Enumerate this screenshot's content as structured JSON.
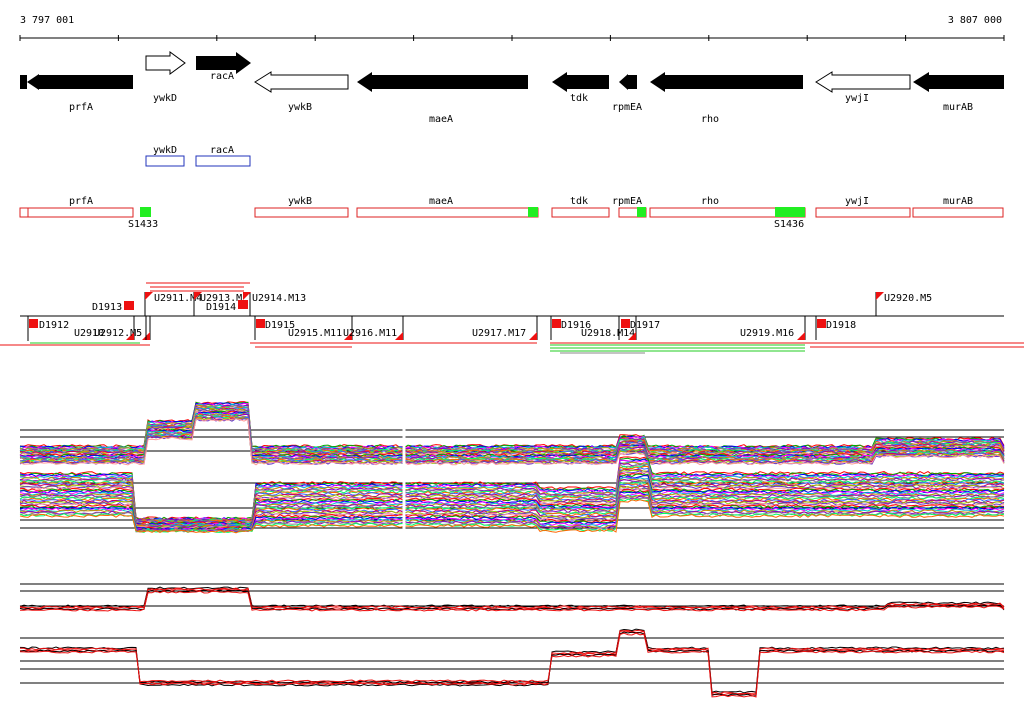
{
  "ruler": {
    "start_label": "3 797 001",
    "end_label": "3 807 000"
  },
  "colors": {
    "gene_fill": "#000000",
    "gene_outline": "#000000",
    "orf_box": "#2233bb",
    "segment_box": "#dd2222",
    "promoter": "#22ee22",
    "marker": "#ee1111",
    "line_red": "#ee1111",
    "line_black": "#000000",
    "line_green": "#22cc22"
  },
  "genes": [
    {
      "name": "prfA",
      "strand": "-",
      "filled": true
    },
    {
      "name": "ywkD",
      "strand": "+",
      "filled": false
    },
    {
      "name": "racA",
      "strand": "+",
      "filled": true
    },
    {
      "name": "ywkB",
      "strand": "-",
      "filled": false
    },
    {
      "name": "maeA",
      "strand": "-",
      "filled": true
    },
    {
      "name": "tdk",
      "strand": "-",
      "filled": true
    },
    {
      "name": "rpmEA",
      "strand": "-",
      "filled": true
    },
    {
      "name": "rho",
      "strand": "-",
      "filled": true
    },
    {
      "name": "ywjI",
      "strand": "-",
      "filled": false
    },
    {
      "name": "murAB",
      "strand": "-",
      "filled": true
    }
  ],
  "orf_boxes": [
    "ywkD",
    "racA"
  ],
  "segments": [
    "prfA",
    "ywkB",
    "maeA",
    "tdk",
    "rpmEA",
    "rho",
    "ywjI",
    "murAB"
  ],
  "promoters": [
    "S1433",
    "S1436"
  ],
  "upper_features": [
    "D1913",
    "U2911.M4",
    "U2913.M",
    "D1914",
    "U2914.M13",
    "U2920.M5"
  ],
  "lower_features": [
    "D1912",
    "U2910",
    "U2912.M5",
    "D1915",
    "U2915.M11",
    "U2916.M11",
    "U2917.M17",
    "D1916",
    "U2918.M14",
    "D1917",
    "U2919.M16",
    "D1918"
  ]
}
